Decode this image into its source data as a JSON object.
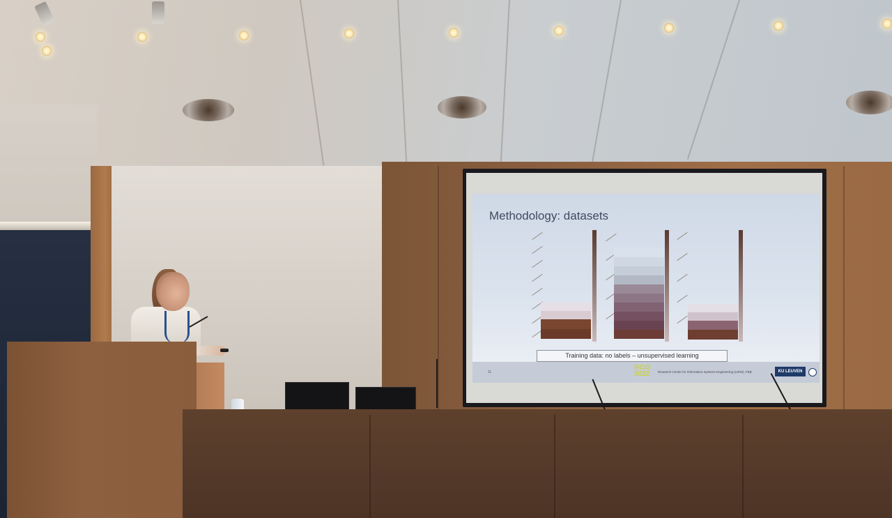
{
  "slide": {
    "title": "Methodology: datasets",
    "caption": "Training data: no labels – unsupervised learning",
    "slide_number": "11",
    "conference_logo": "RCIS 2022",
    "footer_text": "Research Center for Information Systems Engineering (LIRIS), FEB",
    "university_logo": "KU LEUVEN"
  },
  "colors": {
    "slide_background": "#dbe3ee",
    "bar_dark": "#6b3a2c",
    "bar_light": "#dcd6de",
    "wood": "#8b6040"
  }
}
